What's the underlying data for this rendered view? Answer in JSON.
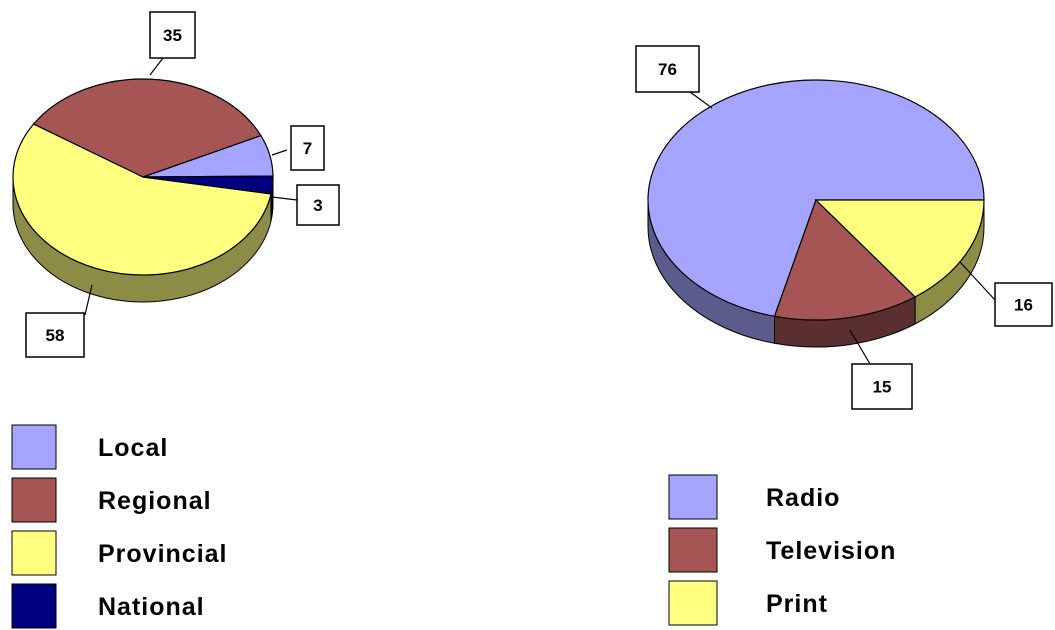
{
  "chart_data": [
    {
      "type": "pie",
      "title": "",
      "categories": [
        "Local",
        "Regional",
        "Provincial",
        "National"
      ],
      "values": [
        7,
        35,
        58,
        3
      ],
      "data_labels": [
        "7",
        "35",
        "58",
        "3"
      ],
      "colors": [
        "#a5a5ff",
        "#a65555",
        "#ffff80",
        "#000080"
      ],
      "legend": {
        "placement": "bottom-left",
        "entries": [
          "Local",
          "Regional",
          "Provincial",
          "National"
        ]
      }
    },
    {
      "type": "pie",
      "title": "",
      "categories": [
        "Radio",
        "Television",
        "Print"
      ],
      "values": [
        76,
        15,
        16
      ],
      "data_labels": [
        "76",
        "15",
        "16"
      ],
      "colors": [
        "#a5a5ff",
        "#a65555",
        "#ffff80"
      ],
      "legend": {
        "placement": "bottom-right",
        "entries": [
          "Radio",
          "Television",
          "Print"
        ]
      }
    }
  ]
}
